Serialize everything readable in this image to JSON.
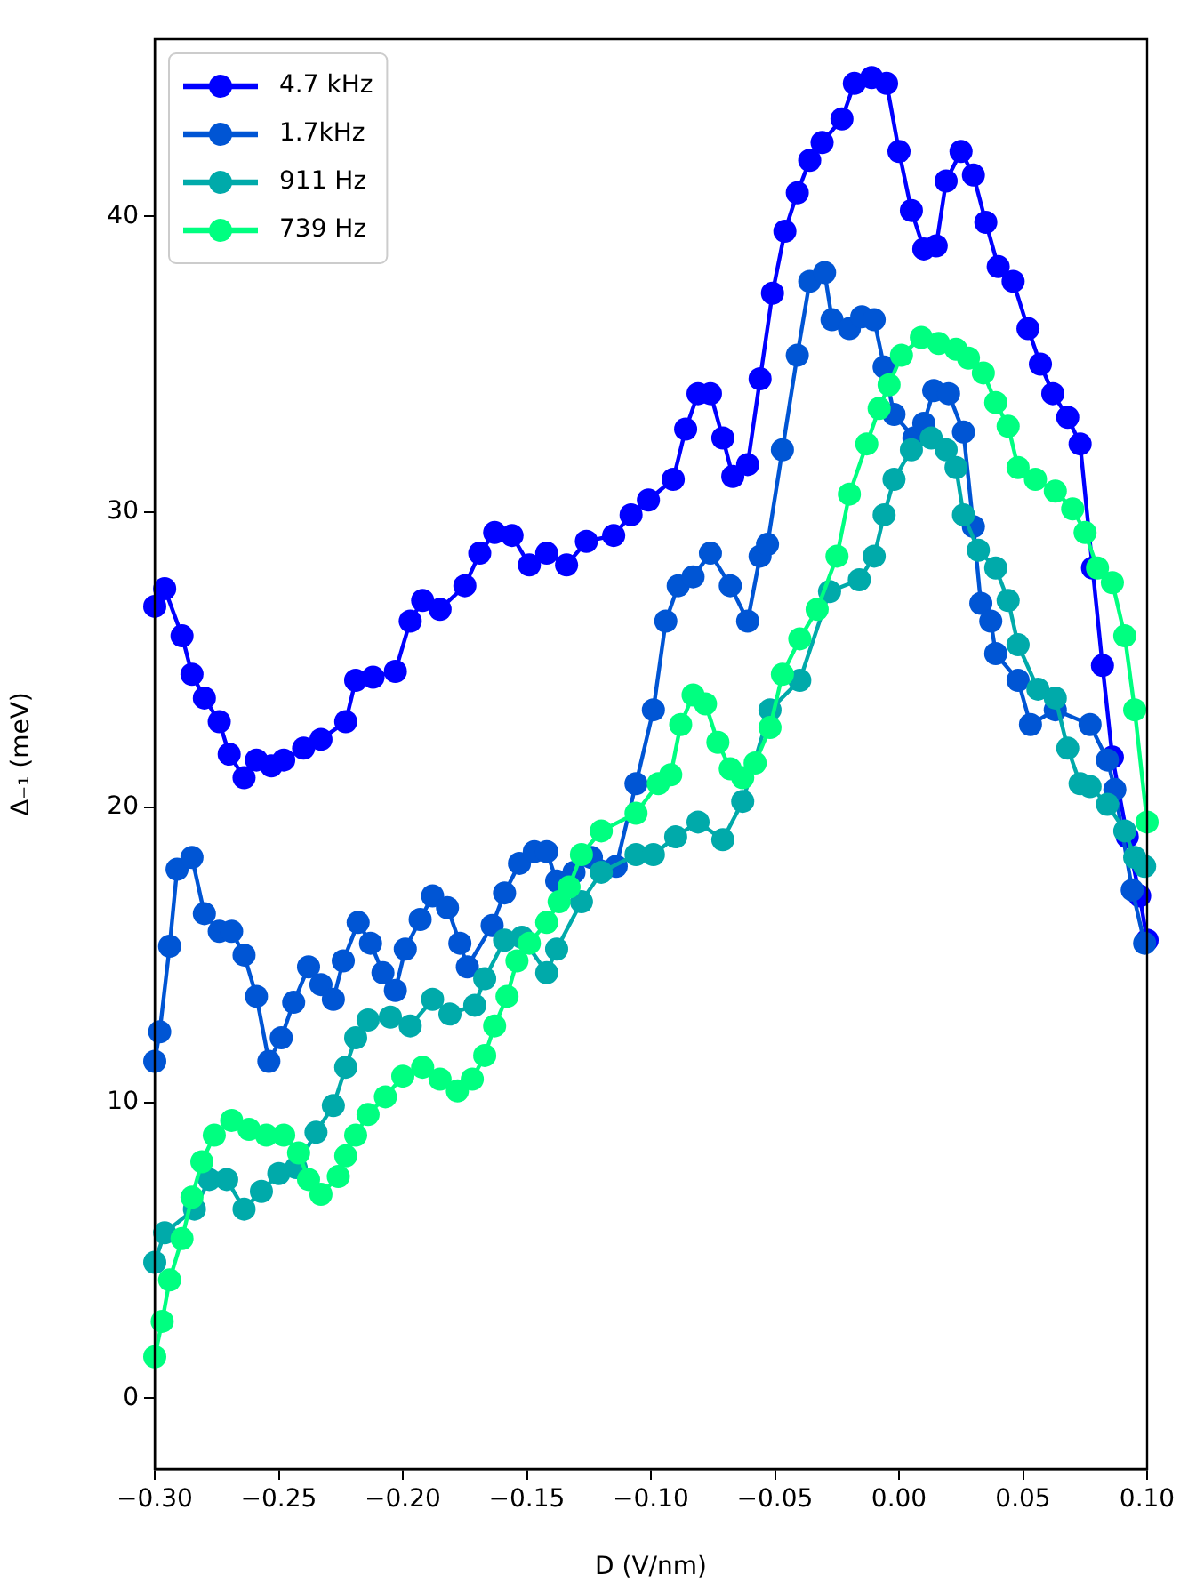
{
  "chart_data": {
    "type": "line",
    "xlabel": "D (V/nm)",
    "ylabel": "Δ₋₁ (meV)",
    "xlim": [
      -0.3,
      0.1
    ],
    "ylim": [
      -2.4,
      46
    ],
    "xticks": [
      {
        "value": -0.3,
        "label": "−0.30"
      },
      {
        "value": -0.25,
        "label": "−0.25"
      },
      {
        "value": -0.2,
        "label": "−0.20"
      },
      {
        "value": -0.15,
        "label": "−0.15"
      },
      {
        "value": -0.1,
        "label": "−0.10"
      },
      {
        "value": -0.05,
        "label": "−0.05"
      },
      {
        "value": 0.0,
        "label": "0.00"
      },
      {
        "value": 0.05,
        "label": "0.05"
      },
      {
        "value": 0.1,
        "label": "0.10"
      }
    ],
    "yticks": [
      0,
      10,
      20,
      30,
      40
    ],
    "grid": false,
    "legend": "top left",
    "marker": "circle",
    "line_style": "solid",
    "series": [
      {
        "name": "4.7 kHz",
        "color": "#0000ff",
        "x": [
          -0.3,
          -0.296,
          -0.289,
          -0.285,
          -0.28,
          -0.274,
          -0.27,
          -0.264,
          -0.259,
          -0.253,
          -0.248,
          -0.24,
          -0.233,
          -0.223,
          -0.219,
          -0.212,
          -0.203,
          -0.197,
          -0.192,
          -0.185,
          -0.175,
          -0.169,
          -0.163,
          -0.156,
          -0.149,
          -0.142,
          -0.134,
          -0.126,
          -0.115,
          -0.108,
          -0.101,
          -0.091,
          -0.086,
          -0.081,
          -0.076,
          -0.071,
          -0.067,
          -0.061,
          -0.056,
          -0.051,
          -0.046,
          -0.041,
          -0.036,
          -0.031,
          -0.023,
          -0.018,
          -0.011,
          -0.005,
          0.0,
          0.005,
          0.01,
          0.015,
          0.019,
          0.025,
          0.03,
          0.035,
          0.04,
          0.046,
          0.052,
          0.057,
          0.062,
          0.068,
          0.073,
          0.078,
          0.082,
          0.086,
          0.092,
          0.097,
          0.1
        ],
        "values": [
          26.8,
          27.4,
          25.8,
          24.5,
          23.7,
          22.9,
          21.8,
          21.0,
          21.6,
          21.4,
          21.6,
          22.0,
          22.3,
          22.9,
          24.3,
          24.4,
          24.6,
          26.3,
          27.0,
          26.7,
          27.5,
          28.6,
          29.3,
          29.2,
          28.2,
          28.6,
          28.2,
          29.0,
          29.2,
          29.9,
          30.4,
          31.1,
          32.8,
          34.0,
          34.0,
          32.5,
          31.2,
          31.6,
          34.5,
          37.4,
          39.5,
          40.8,
          41.9,
          42.5,
          43.3,
          44.5,
          44.7,
          44.5,
          42.2,
          40.2,
          38.9,
          39.0,
          41.2,
          42.2,
          41.4,
          39.8,
          38.3,
          37.8,
          36.2,
          35.0,
          34.0,
          33.2,
          32.3,
          28.1,
          24.8,
          21.7,
          19.0,
          17.0,
          15.5
        ]
      },
      {
        "name": "1.7kHz",
        "color": "#0055d4",
        "x": [
          -0.3,
          -0.298,
          -0.294,
          -0.291,
          -0.285,
          -0.28,
          -0.274,
          -0.269,
          -0.264,
          -0.259,
          -0.254,
          -0.249,
          -0.244,
          -0.238,
          -0.233,
          -0.228,
          -0.224,
          -0.218,
          -0.213,
          -0.208,
          -0.203,
          -0.199,
          -0.193,
          -0.188,
          -0.182,
          -0.177,
          -0.174,
          -0.164,
          -0.159,
          -0.153,
          -0.147,
          -0.142,
          -0.138,
          -0.131,
          -0.124,
          -0.114,
          -0.106,
          -0.099,
          -0.094,
          -0.089,
          -0.083,
          -0.076,
          -0.068,
          -0.061,
          -0.056,
          -0.053,
          -0.047,
          -0.041,
          -0.036,
          -0.03,
          -0.027,
          -0.02,
          -0.015,
          -0.01,
          -0.006,
          -0.002,
          0.006,
          0.01,
          0.014,
          0.02,
          0.026,
          0.03,
          0.033,
          0.037,
          0.039,
          0.048,
          0.053,
          0.063,
          0.077,
          0.084,
          0.087,
          0.094,
          0.099
        ],
        "values": [
          11.4,
          12.4,
          15.3,
          17.9,
          18.3,
          16.4,
          15.8,
          15.8,
          15.0,
          13.6,
          11.4,
          12.2,
          13.4,
          14.6,
          14.0,
          13.5,
          14.8,
          16.1,
          15.4,
          14.4,
          13.8,
          15.2,
          16.2,
          17.0,
          16.6,
          15.4,
          14.6,
          16.0,
          17.1,
          18.1,
          18.5,
          18.5,
          17.5,
          17.8,
          18.3,
          18.0,
          20.8,
          23.3,
          26.3,
          27.5,
          27.8,
          28.6,
          27.5,
          26.3,
          28.5,
          28.9,
          32.1,
          35.3,
          37.8,
          38.1,
          36.5,
          36.2,
          36.6,
          36.5,
          34.9,
          33.3,
          32.5,
          33.0,
          34.1,
          34.0,
          32.7,
          29.5,
          26.9,
          26.3,
          25.2,
          24.3,
          22.8,
          23.3,
          22.8,
          21.6,
          20.6,
          17.2,
          15.4
        ]
      },
      {
        "name": "911 Hz",
        "color": "#00aaaa",
        "x": [
          -0.3,
          -0.296,
          -0.284,
          -0.278,
          -0.271,
          -0.264,
          -0.257,
          -0.25,
          -0.243,
          -0.235,
          -0.228,
          -0.223,
          -0.219,
          -0.214,
          -0.205,
          -0.197,
          -0.188,
          -0.181,
          -0.171,
          -0.167,
          -0.159,
          -0.152,
          -0.142,
          -0.138,
          -0.128,
          -0.12,
          -0.106,
          -0.099,
          -0.09,
          -0.081,
          -0.071,
          -0.063,
          -0.052,
          -0.04,
          -0.028,
          -0.016,
          -0.01,
          -0.006,
          -0.002,
          0.005,
          0.013,
          0.019,
          0.023,
          0.026,
          0.032,
          0.039,
          0.044,
          0.048,
          0.056,
          0.063,
          0.068,
          0.073,
          0.077,
          0.084,
          0.091,
          0.095,
          0.099
        ],
        "values": [
          4.6,
          5.6,
          6.4,
          7.4,
          7.4,
          6.4,
          7.0,
          7.6,
          7.8,
          9.0,
          9.9,
          11.2,
          12.2,
          12.8,
          12.9,
          12.6,
          13.5,
          13.0,
          13.3,
          14.2,
          15.5,
          15.6,
          14.4,
          15.2,
          16.8,
          17.8,
          18.4,
          18.4,
          19.0,
          19.5,
          18.9,
          20.2,
          23.3,
          24.3,
          27.3,
          27.7,
          28.5,
          29.9,
          31.1,
          32.1,
          32.5,
          32.1,
          31.5,
          29.9,
          28.7,
          28.1,
          27.0,
          25.5,
          24.0,
          23.7,
          22.0,
          20.8,
          20.7,
          20.1,
          19.2,
          18.3,
          18.0
        ]
      },
      {
        "name": "739 Hz",
        "color": "#00ff80",
        "x": [
          -0.3,
          -0.297,
          -0.294,
          -0.289,
          -0.285,
          -0.281,
          -0.276,
          -0.269,
          -0.262,
          -0.255,
          -0.248,
          -0.242,
          -0.238,
          -0.233,
          -0.226,
          -0.223,
          -0.219,
          -0.214,
          -0.207,
          -0.2,
          -0.192,
          -0.185,
          -0.178,
          -0.172,
          -0.167,
          -0.163,
          -0.158,
          -0.154,
          -0.149,
          -0.142,
          -0.137,
          -0.133,
          -0.128,
          -0.12,
          -0.106,
          -0.097,
          -0.092,
          -0.088,
          -0.083,
          -0.078,
          -0.073,
          -0.068,
          -0.063,
          -0.058,
          -0.052,
          -0.047,
          -0.04,
          -0.033,
          -0.025,
          -0.02,
          -0.013,
          -0.008,
          -0.004,
          0.001,
          0.009,
          0.016,
          0.023,
          0.028,
          0.034,
          0.039,
          0.044,
          0.048,
          0.055,
          0.063,
          0.07,
          0.075,
          0.08,
          0.086,
          0.091,
          0.095,
          0.1
        ],
        "values": [
          1.4,
          2.6,
          4.0,
          5.4,
          6.8,
          8.0,
          8.9,
          9.4,
          9.1,
          8.9,
          8.9,
          8.3,
          7.4,
          6.9,
          7.5,
          8.2,
          8.9,
          9.6,
          10.2,
          10.9,
          11.2,
          10.8,
          10.4,
          10.8,
          11.6,
          12.6,
          13.6,
          14.8,
          15.4,
          16.1,
          16.8,
          17.3,
          18.4,
          19.2,
          19.8,
          20.8,
          21.1,
          22.8,
          23.8,
          23.5,
          22.2,
          21.3,
          21.0,
          21.5,
          22.7,
          24.5,
          25.7,
          26.7,
          28.5,
          30.6,
          32.3,
          33.5,
          34.3,
          35.3,
          35.9,
          35.7,
          35.5,
          35.2,
          34.7,
          33.7,
          32.9,
          31.5,
          31.1,
          30.7,
          30.1,
          29.3,
          28.1,
          27.6,
          25.8,
          23.3,
          19.5
        ]
      }
    ]
  }
}
